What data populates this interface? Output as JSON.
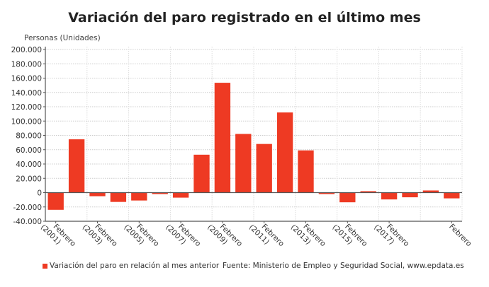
{
  "chart_data": {
    "type": "bar",
    "title": "Variación del paro registrado en el último mes",
    "ylabel": "Personas (Unidades)",
    "ylim": [
      -40000,
      200000
    ],
    "yticks": [
      -40000,
      -20000,
      0,
      20000,
      40000,
      60000,
      80000,
      100000,
      120000,
      140000,
      160000,
      180000,
      200000
    ],
    "ytick_labels": [
      "-40.000",
      "-20.000",
      "0",
      "20.000",
      "40.000",
      "60.000",
      "80.000",
      "100.000",
      "120.000",
      "140.000",
      "160.000",
      "180.000",
      "200.000"
    ],
    "categories": [
      "Febrero (2001)",
      "",
      "Febrero (2003)",
      "",
      "Febrero (2005)",
      "",
      "Febrero (2007)",
      "",
      "Febrero (2009)",
      "",
      "Febrero (2011)",
      "",
      "Febrero (2013)",
      "",
      "Febrero (2015)",
      "",
      "Febrero (2017)",
      "",
      "",
      "Febrero"
    ],
    "series": [
      {
        "name": "Variación del paro en relación al mes anterior",
        "color": "#ee3a23",
        "values": [
          -24000,
          74500,
          -5000,
          -13000,
          -11000,
          -2000,
          -7000,
          53000,
          153500,
          82000,
          68000,
          112000,
          59000,
          -2000,
          -13500,
          2000,
          -9500,
          -6500,
          3000,
          -8000
        ]
      }
    ],
    "grid": true,
    "legend": "bottom-left",
    "source": "Fuente: Ministerio de Empleo y Seguridad Social, www.epdata.es"
  }
}
